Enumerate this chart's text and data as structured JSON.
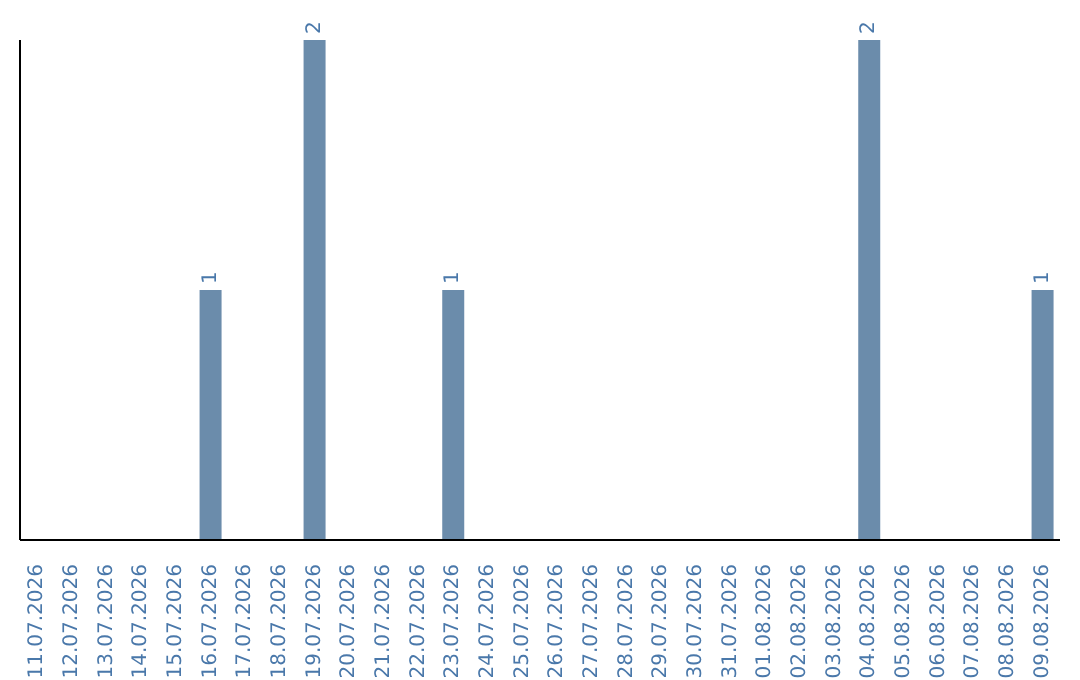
{
  "chart_data": {
    "type": "bar",
    "categories": [
      "11.07.2026",
      "12.07.2026",
      "13.07.2026",
      "14.07.2026",
      "15.07.2026",
      "16.07.2026",
      "17.07.2026",
      "18.07.2026",
      "19.07.2026",
      "20.07.2026",
      "21.07.2026",
      "22.07.2026",
      "23.07.2026",
      "24.07.2026",
      "25.07.2026",
      "26.07.2026",
      "27.07.2026",
      "28.07.2026",
      "29.07.2026",
      "30.07.2026",
      "31.07.2026",
      "01.08.2026",
      "02.08.2026",
      "03.08.2026",
      "04.08.2026",
      "05.08.2026",
      "06.08.2026",
      "07.08.2026",
      "08.08.2026",
      "09.08.2026"
    ],
    "values": [
      0,
      0,
      0,
      0,
      0,
      1,
      0,
      0,
      2,
      0,
      0,
      0,
      1,
      0,
      0,
      0,
      0,
      0,
      0,
      0,
      0,
      0,
      0,
      0,
      2,
      0,
      0,
      0,
      0,
      1
    ],
    "value_labels": [
      null,
      null,
      null,
      null,
      null,
      "1",
      null,
      null,
      "2",
      null,
      null,
      null,
      "1",
      null,
      null,
      null,
      null,
      null,
      null,
      null,
      null,
      null,
      null,
      null,
      "2",
      null,
      null,
      null,
      null,
      "1"
    ],
    "color": "#6b8cab",
    "grid": false,
    "legend": false
  }
}
